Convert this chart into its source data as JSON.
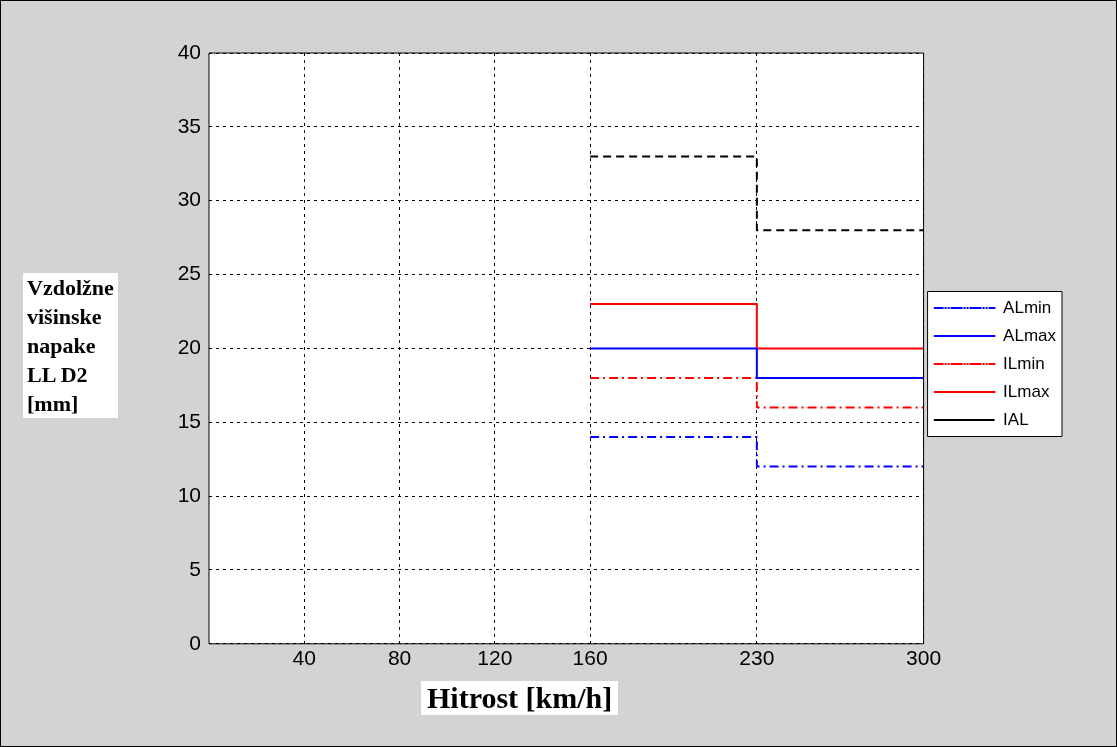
{
  "chart_data": {
    "type": "step",
    "xlabel": "Hitrost [km/h]",
    "ylabel": "Vzdolžne\nvišinske\nnapake\nLL D2\n[mm]",
    "x": [
      160,
      230,
      300
    ],
    "series": [
      {
        "name": "ALmin",
        "color": "#0000ff",
        "line_style": "dashdot",
        "values": [
          14,
          12,
          12
        ]
      },
      {
        "name": "ALmax",
        "color": "#0000ff",
        "line_style": "solid",
        "values": [
          20,
          18,
          18
        ]
      },
      {
        "name": "ILmin",
        "color": "#ff0000",
        "line_style": "dashdot",
        "values": [
          18,
          16,
          16
        ]
      },
      {
        "name": "ILmax",
        "color": "#ff0000",
        "line_style": "solid",
        "values": [
          23,
          20,
          20
        ]
      },
      {
        "name": "IAL",
        "color": "#000000",
        "line_style": "dashed",
        "values": [
          33,
          28,
          28
        ]
      }
    ],
    "xlim": [
      0,
      300
    ],
    "xticks": [
      40,
      80,
      120,
      160,
      230,
      300
    ],
    "ylim": [
      0,
      40
    ],
    "yticks": [
      0,
      5,
      10,
      15,
      20,
      25,
      30,
      35,
      40
    ],
    "grid": true,
    "legend": "right",
    "marker": "none"
  }
}
